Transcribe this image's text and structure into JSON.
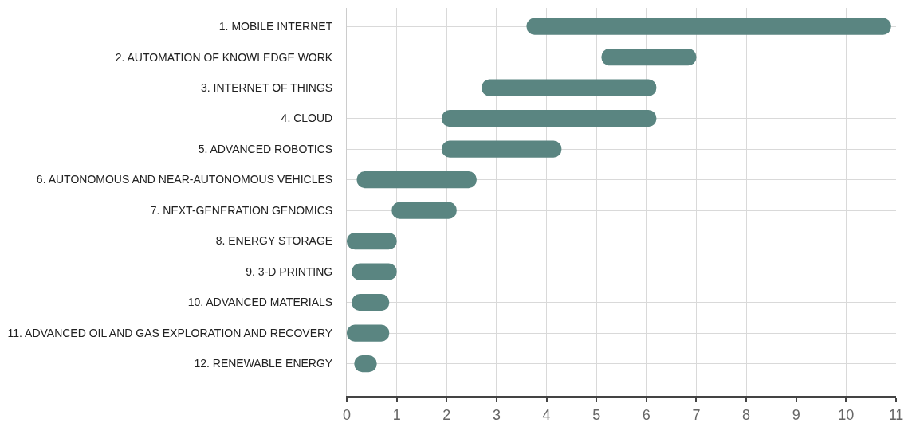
{
  "chart_data": {
    "type": "bar",
    "orientation": "horizontal",
    "categories": [
      "1. MOBILE INTERNET",
      "2. AUTOMATION OF KNOWLEDGE WORK",
      "3. INTERNET OF THINGS",
      "4. CLOUD",
      "5. ADVANCED ROBOTICS",
      "6. AUTONOMOUS AND NEAR-AUTONOMOUS VEHICLES",
      "7. NEXT-GENERATION GENOMICS",
      "8. ENERGY STORAGE",
      "9. 3-D PRINTING",
      "10. ADVANCED MATERIALS",
      "11. ADVANCED OIL AND GAS EXPLORATION AND RECOVERY",
      "12. RENEWABLE ENERGY"
    ],
    "base": [
      3.6,
      5.1,
      2.7,
      1.9,
      1.9,
      0.2,
      0.9,
      0.0,
      0.1,
      0.1,
      0.0,
      0.15
    ],
    "values": [
      7.3,
      1.9,
      3.5,
      4.3,
      2.4,
      2.4,
      1.3,
      1.0,
      0.9,
      0.75,
      0.85,
      0.45
    ],
    "color": "#5a8581",
    "xlim": [
      0,
      11
    ],
    "xticks": [
      0,
      1,
      2,
      3,
      4,
      5,
      6,
      7,
      8,
      9,
      10,
      11
    ],
    "grid": true,
    "legend": false
  }
}
